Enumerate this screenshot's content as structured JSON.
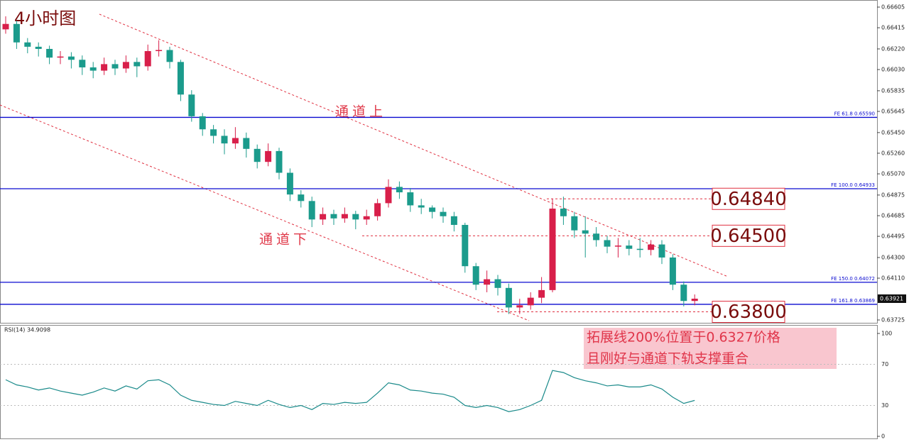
{
  "chart_data": [
    {
      "type": "candlestick",
      "title": "4小时图",
      "open": [
        0.664,
        0.6645,
        0.6628,
        0.6624,
        0.6622,
        0.6614,
        0.6615,
        0.6612,
        0.6605,
        0.6602,
        0.6608,
        0.6604,
        0.661,
        0.6606,
        0.662,
        0.6621,
        0.661,
        0.658,
        0.656,
        0.6548,
        0.6542,
        0.6535,
        0.654,
        0.653,
        0.6518,
        0.6528,
        0.6508,
        0.6488,
        0.6482,
        0.6465,
        0.647,
        0.6466,
        0.647,
        0.6465,
        0.6468,
        0.648,
        0.6495,
        0.649,
        0.6478,
        0.6476,
        0.6472,
        0.6468,
        0.646,
        0.6422,
        0.6405,
        0.641,
        0.6402,
        0.6384,
        0.6386,
        0.6393,
        0.64,
        0.6475,
        0.6468,
        0.6455,
        0.6452,
        0.6446,
        0.644,
        0.6441,
        0.6438,
        0.6437,
        0.6442,
        0.643,
        0.6405,
        0.639
      ],
      "high": [
        0.6652,
        0.6648,
        0.6632,
        0.6628,
        0.6625,
        0.662,
        0.6619,
        0.6616,
        0.661,
        0.6614,
        0.6612,
        0.6616,
        0.6614,
        0.6626,
        0.663,
        0.6624,
        0.6612,
        0.6584,
        0.6563,
        0.6552,
        0.6548,
        0.655,
        0.6545,
        0.6534,
        0.6535,
        0.6531,
        0.6512,
        0.6492,
        0.6486,
        0.6476,
        0.6474,
        0.6476,
        0.6473,
        0.6474,
        0.6484,
        0.6502,
        0.65,
        0.6494,
        0.6484,
        0.6478,
        0.6476,
        0.6472,
        0.6462,
        0.6425,
        0.6418,
        0.6414,
        0.6406,
        0.6392,
        0.6398,
        0.6412,
        0.6484,
        0.6486,
        0.6472,
        0.6468,
        0.6458,
        0.645,
        0.6448,
        0.6446,
        0.6448,
        0.6446,
        0.6446,
        0.6433,
        0.6408,
        0.6396
      ],
      "low": [
        0.6636,
        0.6622,
        0.6618,
        0.6615,
        0.6608,
        0.6608,
        0.6604,
        0.6598,
        0.6595,
        0.6598,
        0.6598,
        0.66,
        0.6596,
        0.6602,
        0.6615,
        0.6604,
        0.6574,
        0.6555,
        0.6542,
        0.6535,
        0.6525,
        0.653,
        0.6522,
        0.6512,
        0.6514,
        0.6502,
        0.6482,
        0.6476,
        0.6458,
        0.646,
        0.646,
        0.6462,
        0.6456,
        0.646,
        0.6464,
        0.6476,
        0.6484,
        0.6472,
        0.647,
        0.6466,
        0.6462,
        0.6454,
        0.6416,
        0.64,
        0.6398,
        0.6395,
        0.6378,
        0.6378,
        0.6382,
        0.6388,
        0.6398,
        0.646,
        0.6448,
        0.643,
        0.644,
        0.6434,
        0.643,
        0.6432,
        0.643,
        0.6432,
        0.6424,
        0.64,
        0.6385,
        0.6386
      ],
      "close": [
        0.6645,
        0.6628,
        0.6624,
        0.6622,
        0.6614,
        0.6615,
        0.6612,
        0.6605,
        0.6602,
        0.6608,
        0.6604,
        0.661,
        0.6606,
        0.662,
        0.6621,
        0.661,
        0.658,
        0.656,
        0.6548,
        0.6542,
        0.6535,
        0.654,
        0.653,
        0.6518,
        0.6528,
        0.6508,
        0.6488,
        0.6482,
        0.6465,
        0.647,
        0.6466,
        0.647,
        0.6465,
        0.6468,
        0.648,
        0.6495,
        0.649,
        0.6478,
        0.6476,
        0.6472,
        0.6468,
        0.646,
        0.6422,
        0.6405,
        0.641,
        0.6402,
        0.6384,
        0.6386,
        0.6393,
        0.64,
        0.6475,
        0.6468,
        0.6455,
        0.6452,
        0.6446,
        0.644,
        0.6441,
        0.6438,
        0.6437,
        0.6442,
        0.643,
        0.6405,
        0.639,
        0.63921
      ],
      "up_color": "#d81f4a",
      "down_color": "#1b9b8c",
      "ylim": [
        0.63725,
        0.66605
      ],
      "yticks": [
        0.66605,
        0.66415,
        {
          "value": 0.6622,
          "label": "0.66220"
        },
        {
          "value": 0.6603,
          "label": "0.66030"
        },
        0.65835,
        0.65645,
        {
          "value": 0.6545,
          "label": "0.65450"
        },
        {
          "value": 0.6526,
          "label": "0.65260"
        },
        {
          "value": 0.6507,
          "label": "0.65070"
        },
        0.64875,
        0.64685,
        0.64495,
        {
          "value": 0.643,
          "label": "0.64300"
        },
        {
          "value": 0.6411,
          "label": "0.64110"
        },
        0.63725
      ],
      "current_price": 0.63921,
      "fe_levels": [
        {
          "label": "FE 61.8  0.65590",
          "value": 0.6559
        },
        {
          "label": "FE 100.0  0.64933",
          "value": 0.64933
        },
        {
          "label": "FE 150.0  0.64072",
          "value": 0.64072
        },
        {
          "label": "FE 161.8  0.63869",
          "value": 0.63869
        }
      ],
      "targets": [
        {
          "label": "0.64840",
          "value": 0.6484
        },
        {
          "label": "0.64500",
          "value": 0.645
        },
        {
          "label": "0.63800",
          "value": 0.638
        }
      ],
      "channel_upper": "通道上",
      "channel_lower": "通道下",
      "note": [
        "拓展线200%位置于0.6327价格",
        "且刚好与通道下轨支撑重合"
      ]
    },
    {
      "type": "line",
      "title": "RSI(14) 34.9098",
      "values": [
        55,
        50,
        48,
        45,
        47,
        44,
        42,
        40,
        43,
        47,
        44,
        49,
        46,
        54,
        55,
        50,
        40,
        35,
        33,
        31,
        30,
        34,
        32,
        30,
        35,
        31,
        28,
        30,
        26,
        32,
        31,
        33,
        32,
        33,
        42,
        52,
        50,
        45,
        44,
        42,
        41,
        38,
        30,
        28,
        30,
        28,
        24,
        26,
        30,
        35,
        64,
        62,
        57,
        54,
        52,
        49,
        50,
        48,
        48,
        50,
        46,
        38,
        32,
        34.9098
      ],
      "color": "#1a8a8a",
      "ylim": [
        0,
        100
      ],
      "yticks": [
        0,
        30,
        70,
        100
      ],
      "grid": true
    }
  ]
}
